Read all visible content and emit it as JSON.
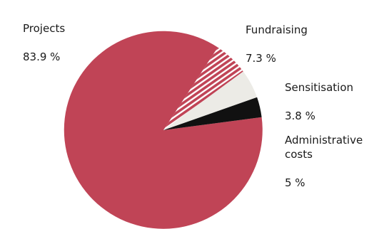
{
  "chart_data": {
    "type": "pie",
    "title": "",
    "slices": [
      {
        "label": "Projects",
        "value_label": "83.9 %",
        "value": 83.9,
        "color": "#c04456",
        "pattern": "solid"
      },
      {
        "label": "Fundraising",
        "value_label": "7.3 %",
        "value": 7.3,
        "color": "#c04456",
        "pattern": "diagonal-stripes"
      },
      {
        "label": "Sensitisation",
        "value_label": "3.8 %",
        "value": 3.8,
        "color": "#ecebe6",
        "pattern": "solid"
      },
      {
        "label": "Administrative\ncosts",
        "value_label": "5 %",
        "value": 5,
        "color": "#111111",
        "pattern": "solid"
      }
    ]
  }
}
